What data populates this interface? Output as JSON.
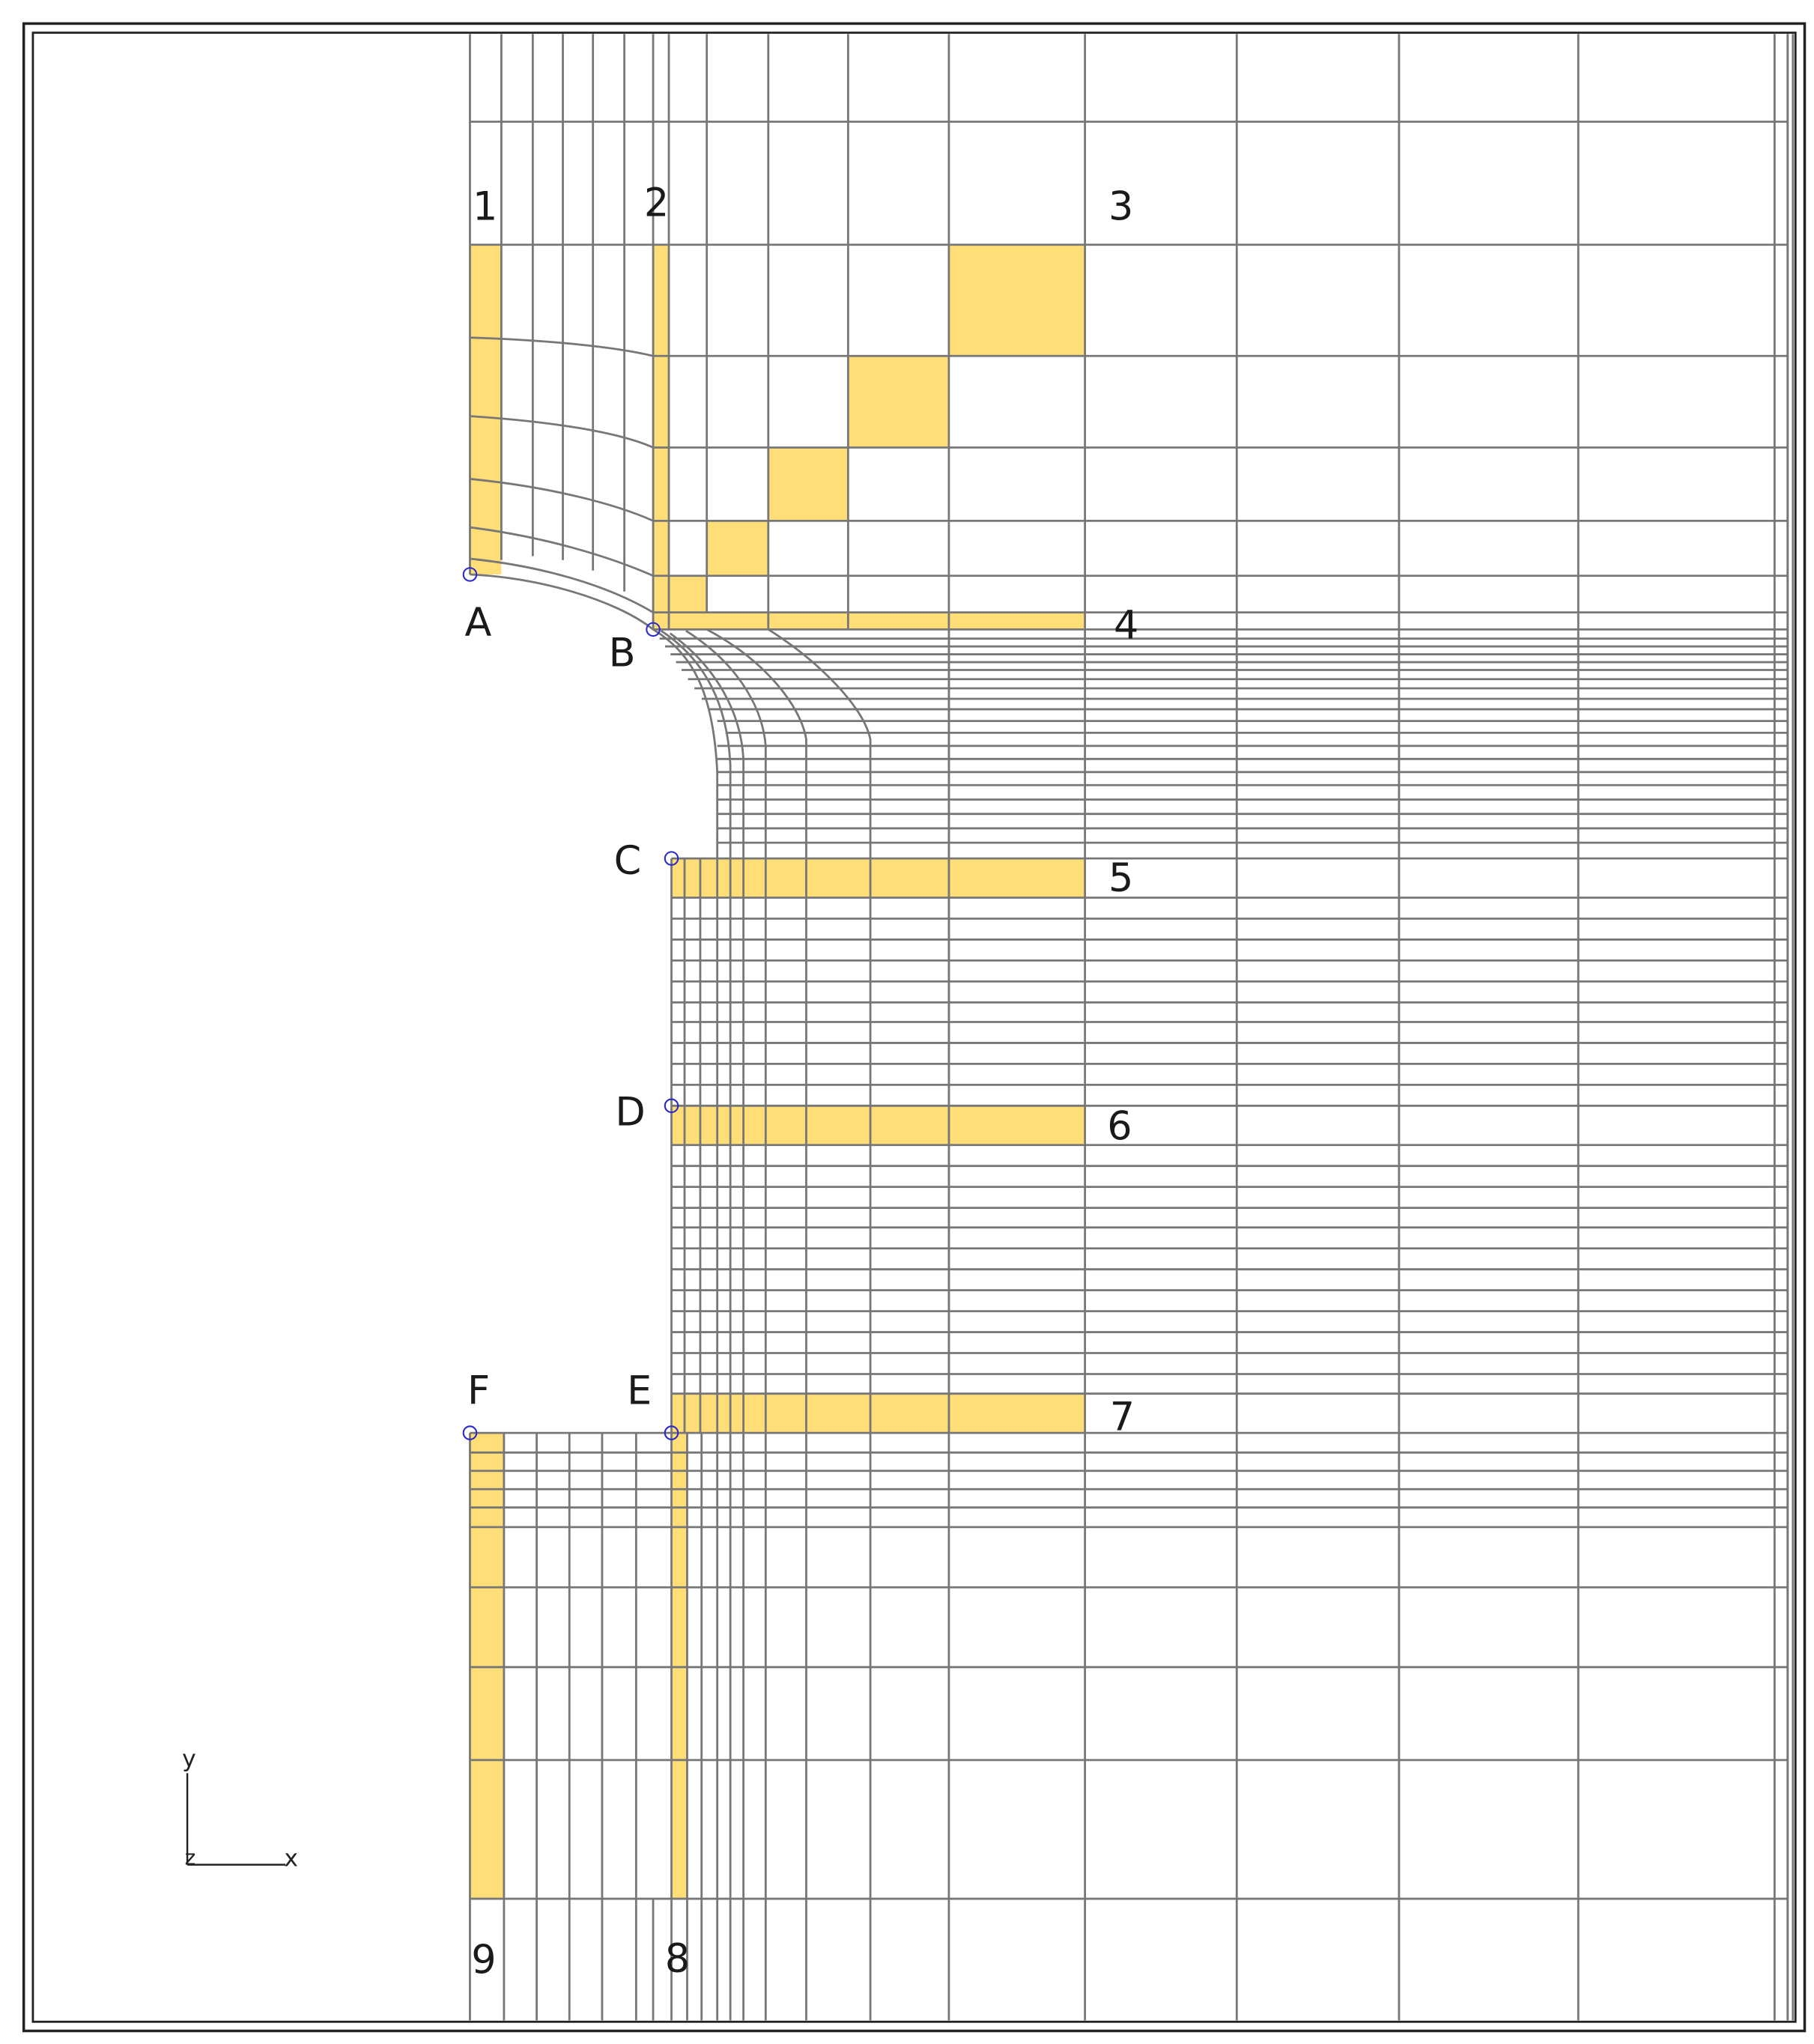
{
  "colors": {
    "background": "#ffffff",
    "frame": "#222222",
    "mesh_line": "#777777",
    "highlight": "#ffdd77",
    "node_marker": "#2b2bcc",
    "text": "#1a1a1a"
  },
  "node_labels": {
    "A": "A",
    "B": "B",
    "C": "C",
    "D": "D",
    "E": "E",
    "F": "F"
  },
  "section_labels": {
    "n1": "1",
    "n2": "2",
    "n3": "3",
    "n4": "4",
    "n5": "5",
    "n6": "6",
    "n7": "7",
    "n8": "8",
    "n9": "9"
  },
  "axis_triad": {
    "x": "x",
    "y": "y",
    "z": "z"
  }
}
